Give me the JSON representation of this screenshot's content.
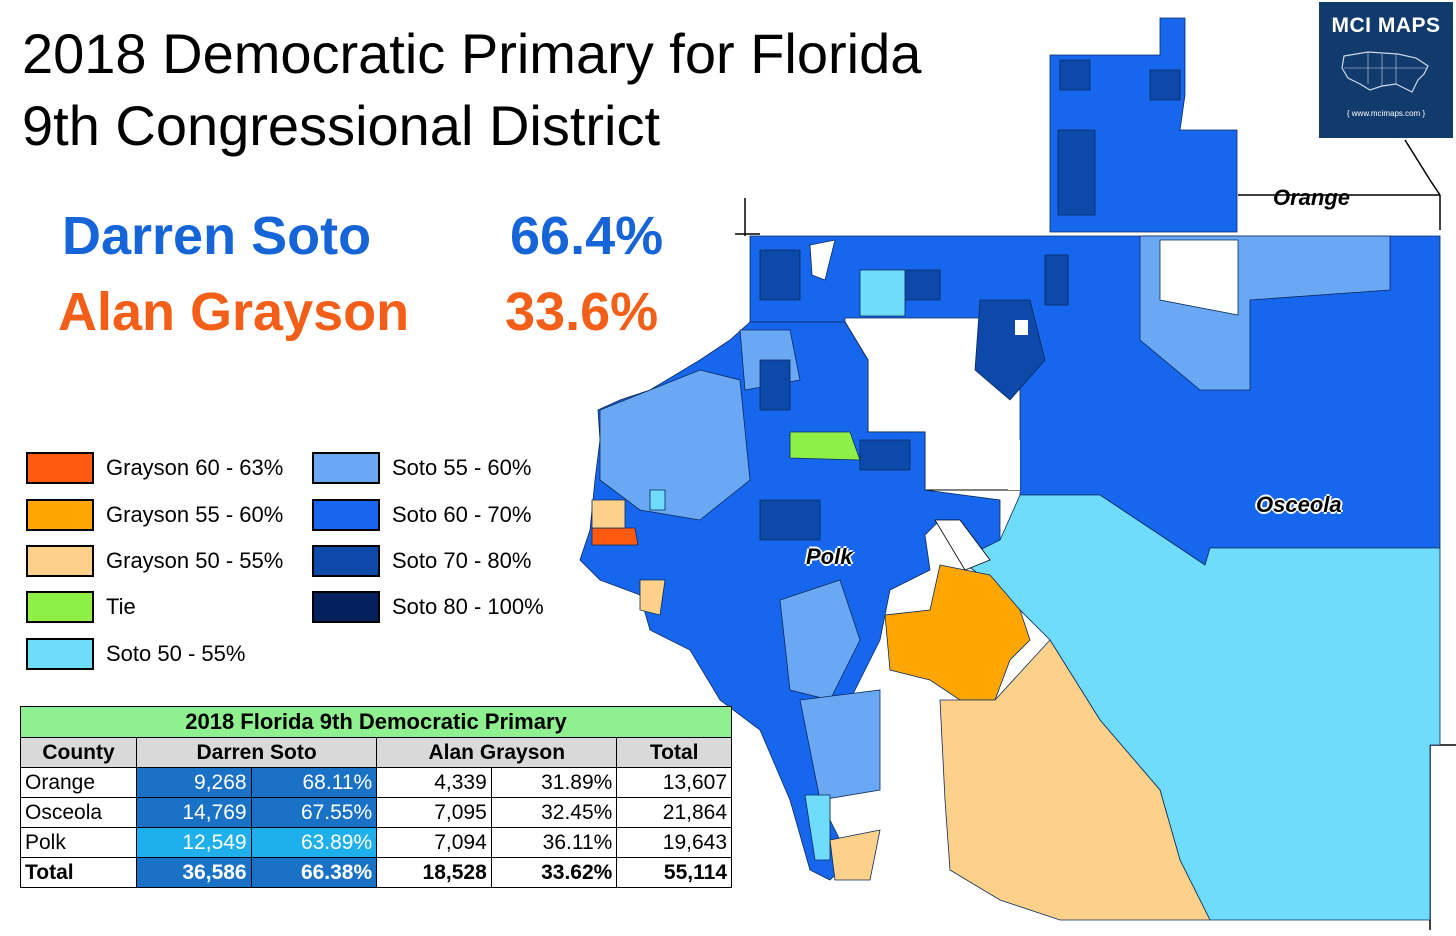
{
  "title_lines": [
    "2018 Democratic Primary for Florida",
    "9th Congressional District"
  ],
  "candidates": [
    {
      "name": "Darren Soto",
      "pct": "66.4%",
      "color": "#1565d8"
    },
    {
      "name": "Alan Grayson",
      "pct": "33.6%",
      "color": "#f35f19"
    }
  ],
  "legend": [
    {
      "label": "Grayson 60 - 63%",
      "color": "#ff5a0f"
    },
    {
      "label": "Grayson 55 - 60%",
      "color": "#ffa600"
    },
    {
      "label": "Grayson 50 - 55%",
      "color": "#fdd18a"
    },
    {
      "label": "Tie",
      "color": "#8ef046"
    },
    {
      "label": "Soto 50 - 55%",
      "color": "#6fdcfb"
    },
    {
      "label": "Soto 55 - 60%",
      "color": "#6aa8f4"
    },
    {
      "label": "Soto 60 - 70%",
      "color": "#1667ee"
    },
    {
      "label": "Soto 70 - 80%",
      "color": "#0c49a8"
    },
    {
      "label": "Soto 80 - 100%",
      "color": "#04215e"
    }
  ],
  "county_labels": {
    "orange": "Orange",
    "osceola": "Osceola",
    "polk": "Polk"
  },
  "logo": {
    "title": "MCI MAPS",
    "url": "{ www.mcimaps.com }"
  },
  "table": {
    "caption": "2018 Florida 9th Democratic Primary",
    "headers": [
      "County",
      "Darren Soto",
      "Alan Grayson",
      "Total"
    ],
    "rows": [
      {
        "county": "Orange",
        "soto_votes": "9,268",
        "soto_pct": "68.11%",
        "grayson_votes": "4,339",
        "grayson_pct": "31.89%",
        "total": "13,607"
      },
      {
        "county": "Osceola",
        "soto_votes": "14,769",
        "soto_pct": "67.55%",
        "grayson_votes": "7,095",
        "grayson_pct": "32.45%",
        "total": "21,864"
      },
      {
        "county": "Polk",
        "soto_votes": "12,549",
        "soto_pct": "63.89%",
        "grayson_votes": "7,094",
        "grayson_pct": "36.11%",
        "total": "19,643"
      }
    ],
    "total_row": {
      "county": "Total",
      "soto_votes": "36,586",
      "soto_pct": "66.38%",
      "grayson_votes": "18,528",
      "grayson_pct": "33.62%",
      "total": "55,114"
    }
  }
}
